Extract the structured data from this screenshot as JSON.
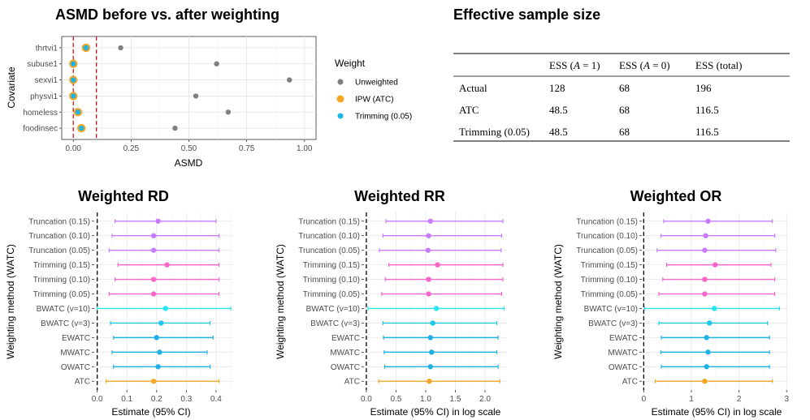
{
  "chart_data": [
    {
      "type": "scatter",
      "title": "ASMD before vs. after weighting",
      "xlabel": "ASMD",
      "ylabel": "Covariate",
      "xlim": [
        -0.05,
        1.05
      ],
      "x_ticks": [
        0.0,
        0.25,
        0.5,
        0.75,
        1.0
      ],
      "x_tick_labels": [
        "0.00",
        "0.25",
        "0.50",
        "0.75",
        "1.00"
      ],
      "reference_lines": [
        0,
        0.1
      ],
      "categories": [
        "thrtvi1",
        "subuse1",
        "sexvi1",
        "physvi1",
        "homeless",
        "foodinsec"
      ],
      "legend_title": "Weight",
      "legend_position": "right",
      "series": [
        {
          "name": "Unweighted",
          "color": "#7f7f7f",
          "values": [
            0.205,
            0.62,
            0.935,
            0.53,
            0.67,
            0.44
          ]
        },
        {
          "name": "IPW (ATC)",
          "color": "#f5a623",
          "values": [
            0.055,
            0.0,
            0.0,
            0.0,
            0.02,
            0.035
          ]
        },
        {
          "name": "Trimming (0.05)",
          "color": "#1fb4e8",
          "values": [
            0.055,
            0.0,
            0.0,
            0.0,
            0.02,
            0.035
          ]
        }
      ]
    },
    {
      "type": "table",
      "title": "Effective sample size",
      "headers": [
        "",
        "ESS (A = 1)",
        "ESS (A = 0)",
        "ESS (total)"
      ],
      "rows": [
        [
          "Actual",
          "128",
          "68",
          "196"
        ],
        [
          "ATC",
          "48.5",
          "68",
          "116.5"
        ],
        [
          "Trimming (0.05)",
          "48.5",
          "68",
          "116.5"
        ]
      ]
    },
    {
      "type": "scatter",
      "subtype": "forest",
      "title": "Weighted RD",
      "xlabel": "Estimate (95% CI)",
      "ylabel": "Weighting method (WATC)",
      "xlim": [
        -0.01,
        0.455
      ],
      "x_ticks": [
        0,
        0.1,
        0.2,
        0.3,
        0.4
      ],
      "x_tick_labels": [
        "0.0",
        "0.1",
        "0.2",
        "0.3",
        "0.4"
      ],
      "reference_line": 0,
      "methods": [
        "Truncation (0.15)",
        "Truncation (0.10)",
        "Truncation (0.05)",
        "Trimming (0.15)",
        "Trimming (0.10)",
        "Trimming (0.05)",
        "BWATC (v=10)",
        "BWATC (v=3)",
        "EWATC",
        "MWATC",
        "OWATC",
        "ATC"
      ],
      "estimates": [
        0.205,
        0.19,
        0.19,
        0.235,
        0.19,
        0.19,
        0.23,
        0.215,
        0.2,
        0.21,
        0.205,
        0.19
      ],
      "ci_lower": [
        0.06,
        0.05,
        0.04,
        0.07,
        0.06,
        0.04,
        0.0,
        0.045,
        0.055,
        0.05,
        0.055,
        0.03
      ],
      "ci_upper": [
        0.4,
        0.41,
        0.41,
        0.41,
        0.41,
        0.41,
        0.45,
        0.38,
        0.39,
        0.37,
        0.38,
        0.41
      ]
    },
    {
      "type": "scatter",
      "subtype": "forest",
      "title": "Weighted RR",
      "xlabel": "Estimate (95% CI) in log scale",
      "ylabel": "Weighting method (WATC)",
      "xlim": [
        -0.04,
        2.37
      ],
      "x_ticks": [
        0,
        0.5,
        1.0,
        1.5,
        2.0
      ],
      "x_tick_labels": [
        "0.0",
        "0.5",
        "1.0",
        "1.5",
        "2.0"
      ],
      "reference_line": 0,
      "methods": [
        "Truncation (0.15)",
        "Truncation (0.10)",
        "Truncation (0.05)",
        "Trimming (0.15)",
        "Trimming (0.10)",
        "Trimming (0.05)",
        "BWATC (v=10)",
        "BWATC (v=3)",
        "EWATC",
        "MWATC",
        "OWATC",
        "ATC"
      ],
      "estimates": [
        1.08,
        1.05,
        1.04,
        1.2,
        1.05,
        1.05,
        1.18,
        1.12,
        1.08,
        1.1,
        1.08,
        1.06
      ],
      "ci_lower": [
        0.33,
        0.28,
        0.22,
        0.38,
        0.32,
        0.26,
        0.03,
        0.28,
        0.29,
        0.3,
        0.31,
        0.21
      ],
      "ci_upper": [
        2.3,
        2.28,
        2.27,
        2.3,
        2.3,
        2.28,
        2.32,
        2.2,
        2.22,
        2.2,
        2.22,
        2.25
      ]
    },
    {
      "type": "scatter",
      "subtype": "forest",
      "title": "Weighted OR",
      "xlabel": "Estimate (95% CI) in log scale",
      "ylabel": "Weighting method (WATC)",
      "xlim": [
        -0.04,
        3.03
      ],
      "x_ticks": [
        0,
        1,
        2,
        3
      ],
      "x_tick_labels": [
        "0",
        "1",
        "2",
        "3"
      ],
      "reference_line": 0,
      "methods": [
        "Truncation (0.15)",
        "Truncation (0.10)",
        "Truncation (0.05)",
        "Trimming (0.15)",
        "Trimming (0.10)",
        "Trimming (0.05)",
        "BWATC (v=10)",
        "BWATC (v=3)",
        "EWATC",
        "MWATC",
        "OWATC",
        "ATC"
      ],
      "estimates": [
        1.35,
        1.3,
        1.28,
        1.5,
        1.28,
        1.28,
        1.48,
        1.38,
        1.32,
        1.35,
        1.32,
        1.28
      ],
      "ci_lower": [
        0.42,
        0.36,
        0.28,
        0.48,
        0.4,
        0.32,
        0.02,
        0.32,
        0.37,
        0.36,
        0.37,
        0.24
      ],
      "ci_upper": [
        2.7,
        2.75,
        2.77,
        2.67,
        2.75,
        2.75,
        2.85,
        2.6,
        2.64,
        2.64,
        2.64,
        2.7
      ]
    }
  ]
}
